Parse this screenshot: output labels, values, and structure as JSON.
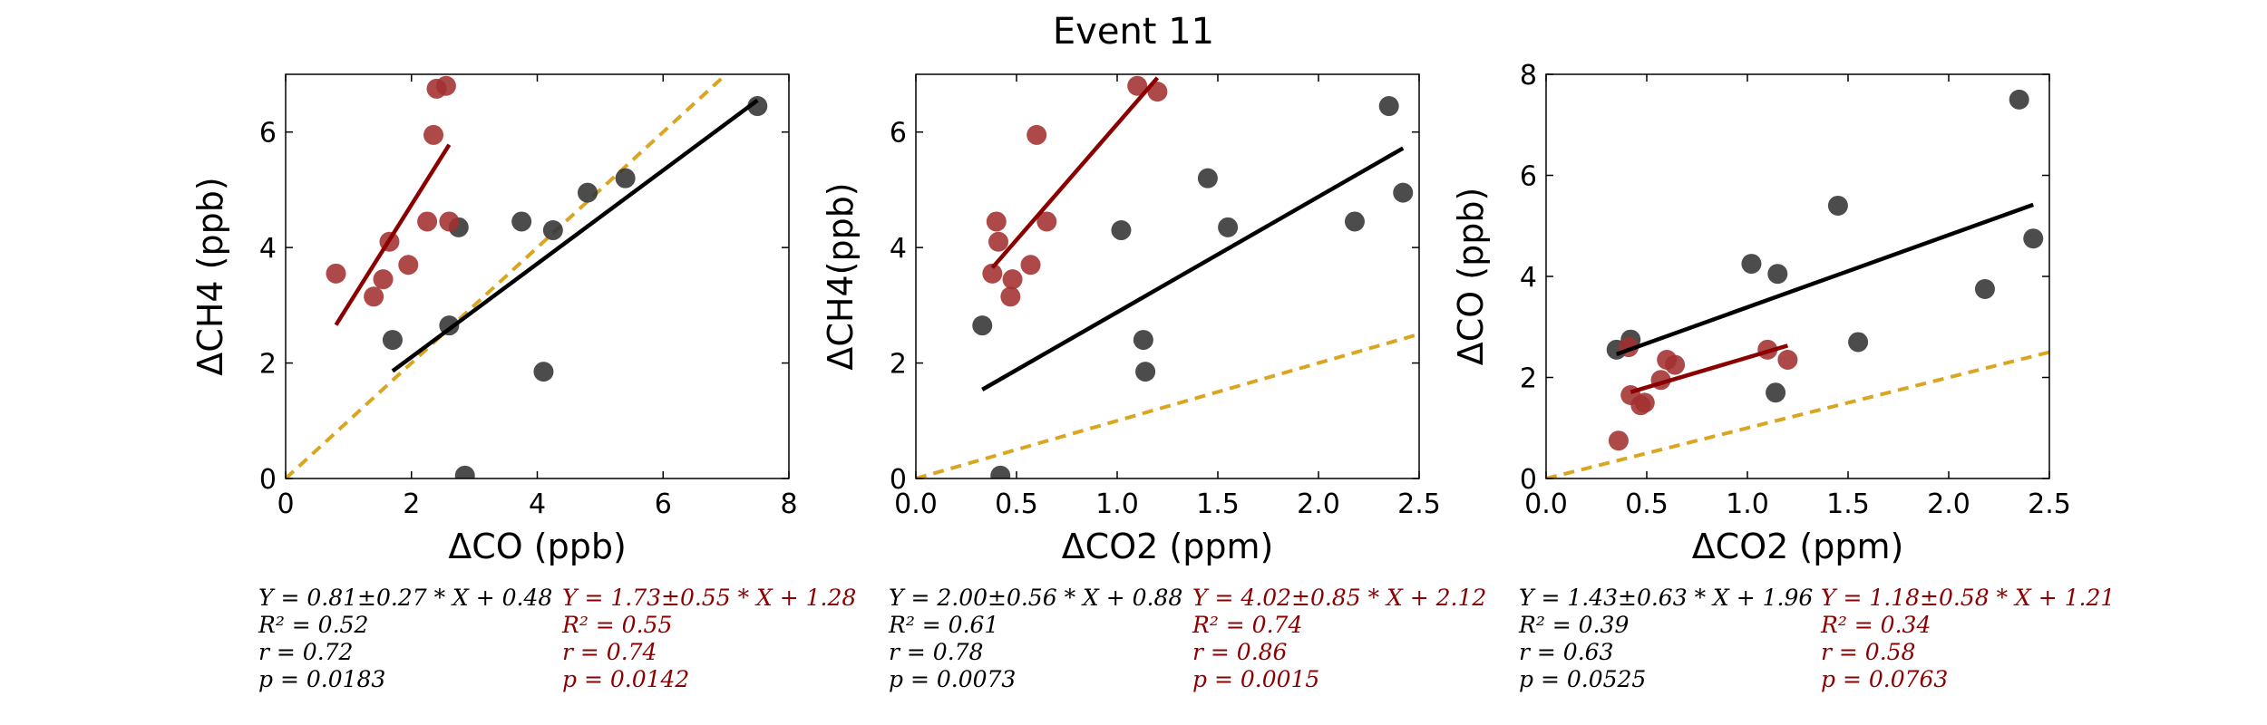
{
  "figure_title": "Event 11",
  "colors": {
    "black_series": "#000000",
    "red_series": "#8b0000",
    "one_to_one_line": "#daa520",
    "black_points": "#333333",
    "red_points": "#a33030"
  },
  "chart_data": [
    {
      "type": "scatter",
      "title": "",
      "xlabel": "ΔCO (ppb)",
      "ylabel": "ΔCH4 (ppb)",
      "xlim": [
        0,
        8
      ],
      "ylim": [
        0,
        7
      ],
      "xticks": [
        "0",
        "2",
        "4",
        "6",
        "8"
      ],
      "yticks": [
        "0",
        "2",
        "4",
        "6"
      ],
      "xtick_values": [
        0,
        2,
        4,
        6,
        8
      ],
      "ytick_values": [
        0,
        2,
        4,
        6
      ],
      "one_to_one": true,
      "series": [
        {
          "color": "black",
          "points": [
            [
              7.5,
              6.45
            ],
            [
              5.4,
              5.2
            ],
            [
              4.8,
              4.95
            ],
            [
              4.25,
              4.3
            ],
            [
              3.75,
              4.45
            ],
            [
              2.75,
              4.35
            ],
            [
              2.6,
              2.65
            ],
            [
              1.7,
              2.4
            ],
            [
              4.1,
              1.85
            ],
            [
              2.85,
              0.05
            ]
          ],
          "fit": [
            [
              1.7,
              1.86
            ],
            [
              7.5,
              6.55
            ]
          ]
        },
        {
          "color": "red",
          "points": [
            [
              0.8,
              3.55
            ],
            [
              1.4,
              3.15
            ],
            [
              1.55,
              3.45
            ],
            [
              1.65,
              4.1
            ],
            [
              1.95,
              3.7
            ],
            [
              2.25,
              4.45
            ],
            [
              2.4,
              6.75
            ],
            [
              2.55,
              6.8
            ],
            [
              2.35,
              5.95
            ],
            [
              2.6,
              4.45
            ]
          ],
          "fit": [
            [
              0.8,
              2.66
            ],
            [
              2.6,
              5.78
            ]
          ]
        }
      ],
      "stats_black": [
        "Y = 0.81±0.27 * X + 0.48",
        "R² = 0.52",
        "r = 0.72",
        "p = 0.0183"
      ],
      "stats_red": [
        "Y = 1.73±0.55 * X + 1.28",
        "R² = 0.55",
        "r = 0.74",
        "p = 0.0142"
      ]
    },
    {
      "type": "scatter",
      "title": "",
      "xlabel": "ΔCO2 (ppm)",
      "ylabel": "ΔCH4(ppb)",
      "xlim": [
        0,
        2.5
      ],
      "ylim": [
        0,
        7
      ],
      "xticks": [
        "0.0",
        "0.5",
        "1.0",
        "1.5",
        "2.0",
        "2.5"
      ],
      "yticks": [
        "0",
        "2",
        "4",
        "6"
      ],
      "xtick_values": [
        0,
        0.5,
        1.0,
        1.5,
        2.0,
        2.5
      ],
      "ytick_values": [
        0,
        2,
        4,
        6
      ],
      "one_to_one": true,
      "series": [
        {
          "color": "black",
          "points": [
            [
              2.35,
              6.45
            ],
            [
              2.42,
              4.95
            ],
            [
              1.45,
              5.2
            ],
            [
              1.55,
              4.35
            ],
            [
              2.18,
              4.45
            ],
            [
              1.02,
              4.3
            ],
            [
              0.33,
              2.65
            ],
            [
              1.13,
              2.4
            ],
            [
              1.14,
              1.85
            ],
            [
              0.42,
              0.05
            ]
          ],
          "fit": [
            [
              0.33,
              1.54
            ],
            [
              2.42,
              5.72
            ]
          ]
        },
        {
          "color": "red",
          "points": [
            [
              0.38,
              3.55
            ],
            [
              0.41,
              4.1
            ],
            [
              0.4,
              4.45
            ],
            [
              0.47,
              3.15
            ],
            [
              0.48,
              3.45
            ],
            [
              0.57,
              3.7
            ],
            [
              0.6,
              5.95
            ],
            [
              0.65,
              4.45
            ],
            [
              1.1,
              6.8
            ],
            [
              1.2,
              6.7
            ]
          ],
          "fit": [
            [
              0.38,
              3.65
            ],
            [
              1.2,
              6.94
            ]
          ]
        }
      ],
      "stats_black": [
        "Y = 2.00±0.56 * X + 0.88",
        "R² = 0.61",
        "r = 0.78",
        "p = 0.0073"
      ],
      "stats_red": [
        "Y = 4.02±0.85 * X + 2.12",
        "R² = 0.74",
        "r = 0.86",
        "p = 0.0015"
      ]
    },
    {
      "type": "scatter",
      "title": "",
      "xlabel": "ΔCO2 (ppm)",
      "ylabel": "ΔCO (ppb)",
      "xlim": [
        0,
        2.5
      ],
      "ylim": [
        0,
        8
      ],
      "xticks": [
        "0.0",
        "0.5",
        "1.0",
        "1.5",
        "2.0",
        "2.5"
      ],
      "yticks": [
        "0",
        "2",
        "4",
        "6",
        "8"
      ],
      "xtick_values": [
        0,
        0.5,
        1.0,
        1.5,
        2.0,
        2.5
      ],
      "ytick_values": [
        0,
        2,
        4,
        6,
        8
      ],
      "one_to_one": true,
      "series": [
        {
          "color": "black",
          "points": [
            [
              2.35,
              7.5
            ],
            [
              2.42,
              4.75
            ],
            [
              1.45,
              5.4
            ],
            [
              1.02,
              4.25
            ],
            [
              1.15,
              4.05
            ],
            [
              2.18,
              3.75
            ],
            [
              1.55,
              2.7
            ],
            [
              0.35,
              2.55
            ],
            [
              0.42,
              2.75
            ],
            [
              1.14,
              1.7
            ]
          ],
          "fit": [
            [
              0.35,
              2.46
            ],
            [
              2.42,
              5.42
            ]
          ]
        },
        {
          "color": "red",
          "points": [
            [
              0.36,
              0.75
            ],
            [
              0.41,
              2.6
            ],
            [
              0.42,
              1.65
            ],
            [
              0.47,
              1.45
            ],
            [
              0.49,
              1.5
            ],
            [
              0.57,
              1.95
            ],
            [
              0.6,
              2.35
            ],
            [
              0.64,
              2.25
            ],
            [
              1.1,
              2.55
            ],
            [
              1.2,
              2.35
            ]
          ],
          "fit": [
            [
              0.42,
              1.71
            ],
            [
              1.2,
              2.63
            ]
          ]
        }
      ],
      "stats_black": [
        "Y = 1.43±0.63 * X + 1.96",
        "R² = 0.39",
        "r = 0.63",
        "p = 0.0525"
      ],
      "stats_red": [
        "Y = 1.18±0.58 * X + 1.21",
        "R² = 0.34",
        "r = 0.58",
        "p = 0.0763"
      ]
    }
  ]
}
